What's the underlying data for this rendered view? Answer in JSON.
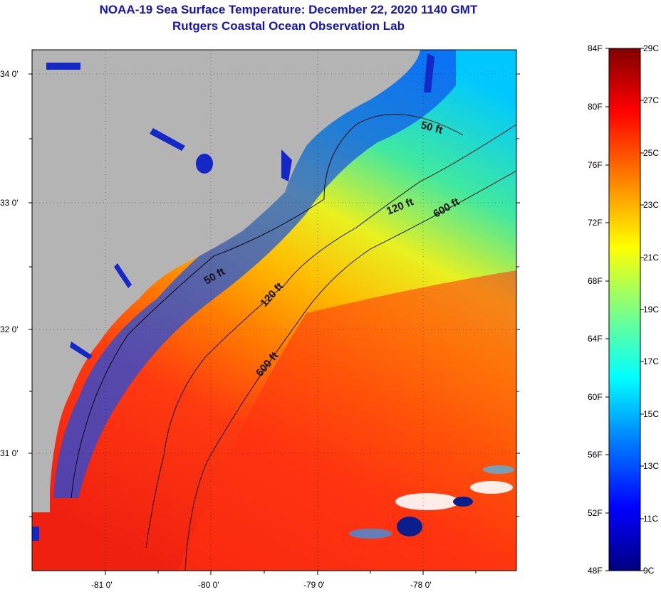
{
  "title": "NOAA-19 Sea Surface Temperature:  December 22, 2020 1140 GMT",
  "subtitle": "Rutgers Coastal Ocean Observation Lab",
  "map": {
    "lat_labels": [
      "34 0'",
      "33 0'",
      "32 0'",
      "31 0'"
    ],
    "lon_labels": [
      "-81 0'",
      "-80 0'",
      "-79 0'",
      "-78 0'"
    ],
    "contours": {
      "c50a": "50 ft",
      "c50b": "50 ft",
      "c120a": "120 ft",
      "c120b": "120 ft",
      "c600a": "600 ft",
      "c600b": "600 ft"
    },
    "land_color": "#b4b4b4"
  },
  "colorbar": {
    "f_labels": [
      "84F",
      "80F",
      "76F",
      "72F",
      "68F",
      "64F",
      "60F",
      "56F",
      "52F",
      "48F"
    ],
    "c_labels": [
      "29C",
      "27C",
      "25C",
      "23C",
      "21C",
      "19C",
      "17C",
      "15C",
      "13C",
      "11C",
      "9C"
    ],
    "colors": [
      "#000080",
      "#0000ff",
      "#0080ff",
      "#00ffff",
      "#80ff80",
      "#ffff00",
      "#ff8000",
      "#ff0000",
      "#800000"
    ]
  }
}
